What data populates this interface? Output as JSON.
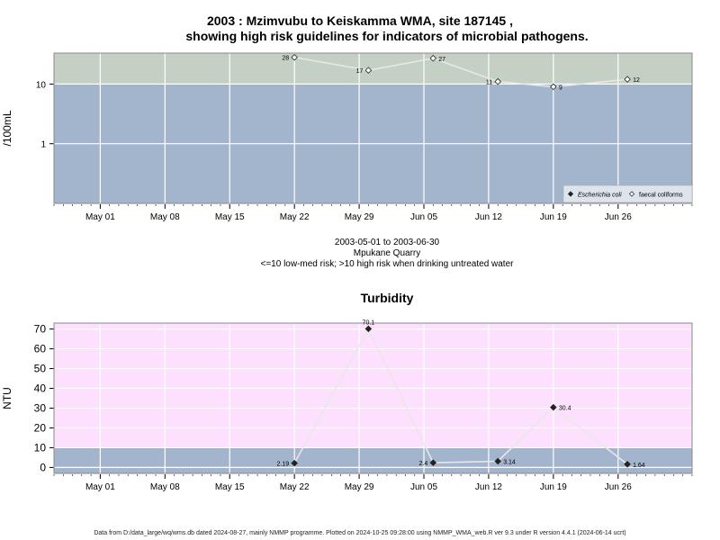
{
  "title_line1": "2003 : Mzimvubu to Keiskamma WMA, site 187145 ,",
  "title_line2": "showing high risk guidelines for indicators of microbial pathogens.",
  "subtitle": {
    "date_range": "2003-05-01 to 2003-06-30",
    "site_name": "Mpukane Quarry",
    "risk_note": "<=10 low-med risk; >10 high risk when drinking untreated water"
  },
  "footer": "Data from D:/data_large/wq/wms.db dated 2024-08-27, mainly NMMP programme. Plotted on 2024-10-25 09:28:00 using NMMP_WMA_web.R ver 9.3 under R version 4.4.1 (2024-06-14 ucrt)",
  "colors": {
    "low_band": "#a3b5cc",
    "micro_high_band": "#c4d0c4",
    "turb_high_band": "#fde0fd",
    "line": "#e8e8e8"
  },
  "chart_data": [
    {
      "type": "scatter",
      "title": "",
      "ylabel": "/100mL",
      "y_scale": "log",
      "ylim": [
        0.1,
        33
      ],
      "y_ticks": [
        "1",
        "10"
      ],
      "threshold": 10,
      "xlim": [
        "2003-04-26",
        "2003-07-04"
      ],
      "x_ticks": [
        "May 01",
        "May 08",
        "May 15",
        "May 22",
        "May 29",
        "Jun 05",
        "Jun 12",
        "Jun 19",
        "Jun 26"
      ],
      "x_tick_dates": [
        "2003-05-01",
        "2003-05-08",
        "2003-05-15",
        "2003-05-22",
        "2003-05-29",
        "2003-06-05",
        "2003-06-12",
        "2003-06-19",
        "2003-06-26"
      ],
      "legend_position": "bottom-right",
      "series": [
        {
          "name": "faecal coliforms",
          "marker": "open-diamond",
          "x": [
            "2003-05-22",
            "2003-05-30",
            "2003-06-06",
            "2003-06-13",
            "2003-06-19",
            "2003-06-27"
          ],
          "y": [
            28,
            17,
            27,
            11,
            9,
            12
          ],
          "labels": [
            "28",
            "17",
            "27",
            "11",
            "9",
            "12"
          ],
          "label_side": [
            "left",
            "left",
            "right",
            "left",
            "right",
            "right"
          ]
        },
        {
          "name": "Escherichia coli",
          "marker": "filled-diamond",
          "x": [],
          "y": [],
          "labels": [],
          "label_side": []
        }
      ]
    },
    {
      "type": "scatter",
      "title": "Turbidity",
      "ylabel": "NTU",
      "ylim": [
        -3,
        73
      ],
      "y_ticks": [
        "0",
        "10",
        "20",
        "30",
        "40",
        "50",
        "60",
        "70"
      ],
      "threshold": 10,
      "xlim": [
        "2003-04-26",
        "2003-07-04"
      ],
      "x_ticks": [
        "May 01",
        "May 08",
        "May 15",
        "May 22",
        "May 29",
        "Jun 05",
        "Jun 12",
        "Jun 19",
        "Jun 26"
      ],
      "x_tick_dates": [
        "2003-05-01",
        "2003-05-08",
        "2003-05-15",
        "2003-05-22",
        "2003-05-29",
        "2003-06-05",
        "2003-06-12",
        "2003-06-19",
        "2003-06-26"
      ],
      "series": [
        {
          "name": "",
          "marker": "filled-diamond",
          "x": [
            "2003-05-22",
            "2003-05-30",
            "2003-06-06",
            "2003-06-13",
            "2003-06-19",
            "2003-06-27"
          ],
          "y": [
            2.19,
            70.1,
            2.4,
            3.14,
            30.4,
            1.64
          ],
          "labels": [
            "2.19",
            "70.1",
            "2.4",
            "3.14",
            "30.4",
            "1.64"
          ],
          "label_side": [
            "left",
            "top",
            "left",
            "right",
            "right",
            "right"
          ]
        }
      ]
    }
  ]
}
